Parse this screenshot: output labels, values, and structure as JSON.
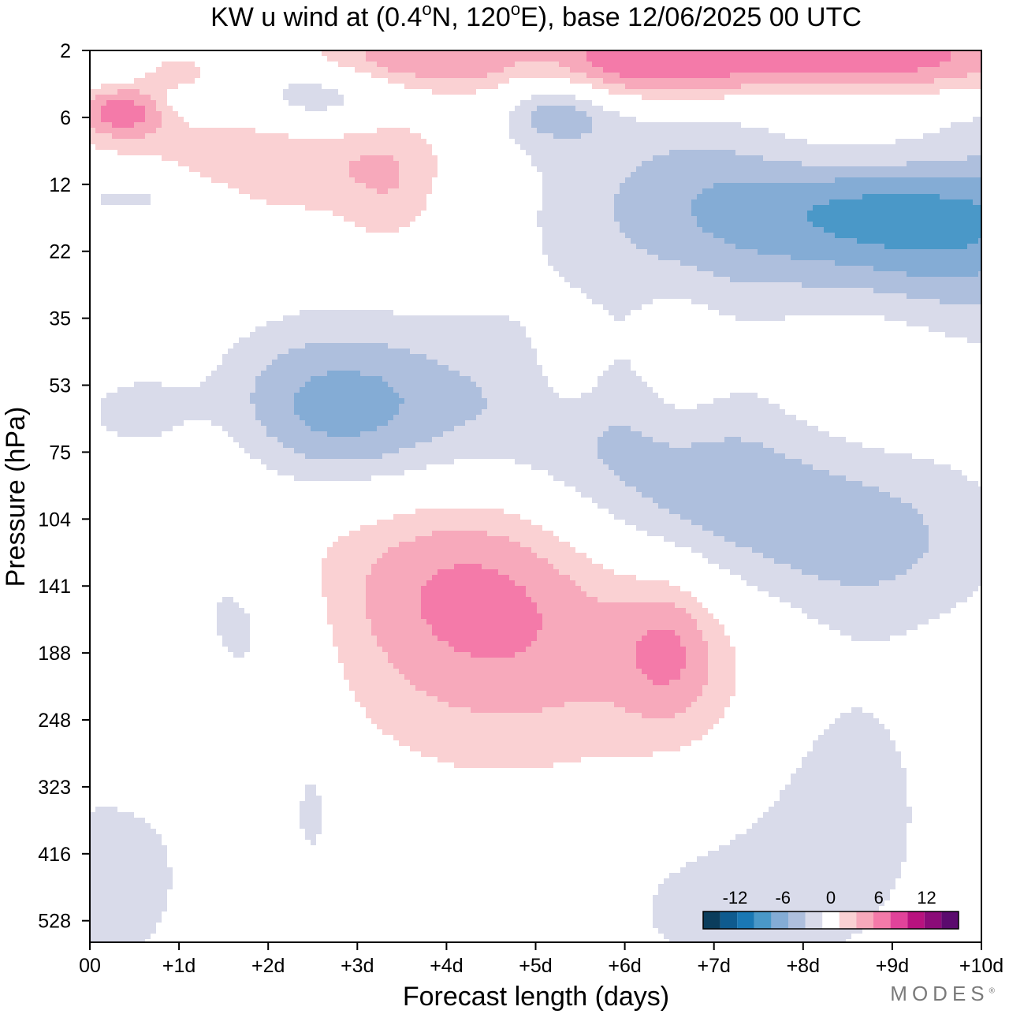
{
  "chart_data": {
    "type": "contour",
    "title": {
      "pre": "KW u wind at (0.4",
      "lat_unit": "N, 120",
      "lon_unit": "E),  base 12/06/2025  00 UTC",
      "degree": "o"
    },
    "xlabel": "Forecast length (days)",
    "ylabel": "Pressure (hPa)",
    "x_ticks": [
      {
        "value": 0,
        "label": "00"
      },
      {
        "value": 1,
        "label": "+1d"
      },
      {
        "value": 2,
        "label": "+2d"
      },
      {
        "value": 3,
        "label": "+3d"
      },
      {
        "value": 4,
        "label": "+4d"
      },
      {
        "value": 5,
        "label": "+5d"
      },
      {
        "value": 6,
        "label": "+6d"
      },
      {
        "value": 7,
        "label": "+7d"
      },
      {
        "value": 8,
        "label": "+8d"
      },
      {
        "value": 9,
        "label": "+9d"
      },
      {
        "value": 10,
        "label": "+10d"
      }
    ],
    "y_ticks": [
      2,
      6,
      12,
      22,
      35,
      53,
      75,
      104,
      141,
      188,
      248,
      323,
      416,
      528
    ],
    "xlim": [
      0,
      10
    ],
    "ylim_levels": [
      2,
      528
    ],
    "y_scale": "pressure (top = low pressure)",
    "grid": false,
    "colorbar": {
      "placement": "bottom-right",
      "labels": [
        {
          "value": -12,
          "label": "-12"
        },
        {
          "value": -6,
          "label": "-6"
        },
        {
          "value": 0,
          "label": "0"
        },
        {
          "value": 6,
          "label": "6"
        },
        {
          "value": 12,
          "label": "12"
        }
      ],
      "bins": [
        {
          "lo": -16,
          "hi": -14,
          "color": "#0b3d5c"
        },
        {
          "lo": -14,
          "hi": -12,
          "color": "#0f5b8f"
        },
        {
          "lo": -12,
          "hi": -10,
          "color": "#1a78b4"
        },
        {
          "lo": -10,
          "hi": -8,
          "color": "#4a98c8"
        },
        {
          "lo": -8,
          "hi": -6,
          "color": "#84acd5"
        },
        {
          "lo": -6,
          "hi": -4,
          "color": "#aebfdd"
        },
        {
          "lo": -4,
          "hi": -2,
          "color": "#d9dbea"
        },
        {
          "lo": -2,
          "hi": 2,
          "color": "#ffffff"
        },
        {
          "lo": 2,
          "hi": 4,
          "color": "#fad1d3"
        },
        {
          "lo": 4,
          "hi": 6,
          "color": "#f7a9bb"
        },
        {
          "lo": 6,
          "hi": 8,
          "color": "#f47aa9"
        },
        {
          "lo": 8,
          "hi": 10,
          "color": "#e1439a"
        },
        {
          "lo": 10,
          "hi": 12,
          "color": "#b8127f"
        },
        {
          "lo": 12,
          "hi": 14,
          "color": "#8b0b78"
        },
        {
          "lo": 14,
          "hi": 16,
          "color": "#5b0a6e"
        }
      ]
    },
    "fields": [
      {
        "value": -3,
        "day": 0.2,
        "level": 2.6,
        "sd": 0.3,
        "sl": 0.3
      },
      {
        "value": -3,
        "day": 1.0,
        "level": 4.4,
        "sd": 0.3,
        "sl": 0.3
      },
      {
        "value": -4,
        "day": 2.8,
        "level": 3.9,
        "sd": 0.8,
        "sl": 0.5
      },
      {
        "value": -3,
        "day": 2.4,
        "level": 4.6,
        "sd": 0.6,
        "sl": 0.4
      },
      {
        "value": -4,
        "day": 5.1,
        "level": 4.4,
        "sd": 0.4,
        "sl": 0.5
      },
      {
        "value": -3,
        "day": 5.5,
        "level": 5.4,
        "sd": 0.5,
        "sl": 0.3
      },
      {
        "value": -5,
        "day": 8.5,
        "level": 4.2,
        "sd": 1.3,
        "sl": 0.6
      },
      {
        "value": -3,
        "day": 0.5,
        "level": 13.7,
        "sd": 0.6,
        "sl": 0.2
      },
      {
        "value": 2.5,
        "day": 0.3,
        "level": 5.1,
        "sd": 0.5,
        "sl": 0.4
      },
      {
        "value": 4.5,
        "day": 0.4,
        "level": 5.4,
        "sd": 0.4,
        "sl": 0.3
      },
      {
        "value": 4.5,
        "day": 2.3,
        "level": 7.6,
        "sd": 1.1,
        "sl": 0.8
      },
      {
        "value": 2.5,
        "day": 3.4,
        "level": 12.5,
        "sd": 0.4,
        "sl": 0.8
      },
      {
        "value": 3,
        "day": 1.0,
        "level": 3.0,
        "sd": 0.3,
        "sl": 0.2
      },
      {
        "value": 5,
        "day": 3.4,
        "level": 2.3,
        "sd": 0.8,
        "sl": 0.3
      },
      {
        "value": 9,
        "day": 6.5,
        "level": 2.5,
        "sd": 1.6,
        "sl": 0.5
      },
      {
        "value": 9,
        "day": 9.2,
        "level": 2.5,
        "sd": 1.2,
        "sl": 0.5
      },
      {
        "value": 6,
        "day": 8.4,
        "level": 7.6,
        "sd": 0.9,
        "sl": 0.5
      },
      {
        "value": 3,
        "day": 9.6,
        "level": 8.8,
        "sd": 0.6,
        "sl": 0.5
      },
      {
        "value": -4,
        "day": 7.3,
        "level": 13.9,
        "sd": 1.5,
        "sl": 1.0
      },
      {
        "value": -6,
        "day": 9.4,
        "level": 14.5,
        "sd": 1.2,
        "sl": 1.0
      },
      {
        "value": -3,
        "day": 8.0,
        "level": 19.0,
        "sd": 1.8,
        "sl": 1.5
      },
      {
        "value": -3,
        "day": 10.0,
        "level": 30.0,
        "sd": 0.9,
        "sl": 2.0
      },
      {
        "value": 3.5,
        "day": 9.0,
        "level": 45.0,
        "sd": 1.3,
        "sl": 1.8
      },
      {
        "value": 2.5,
        "day": 6.6,
        "level": 49.0,
        "sd": 0.4,
        "sl": 0.9
      },
      {
        "value": 2.5,
        "day": 5.4,
        "level": 48.0,
        "sd": 0.3,
        "sl": 0.6
      },
      {
        "value": -6,
        "day": 4.2,
        "level": 68.0,
        "sd": 1.6,
        "sl": 1.2
      },
      {
        "value": -6,
        "day": 2.5,
        "level": 61.0,
        "sd": 1.0,
        "sl": 0.9
      },
      {
        "value": -6,
        "day": 6.8,
        "level": 92.0,
        "sd": 1.4,
        "sl": 1.2
      },
      {
        "value": -5,
        "day": 8.8,
        "level": 115.0,
        "sd": 1.1,
        "sl": 1.1
      },
      {
        "value": -4,
        "day": 0.5,
        "level": 62.0,
        "sd": 0.5,
        "sl": 0.5
      },
      {
        "value": -5,
        "day": 0.6,
        "level": 120.0,
        "sd": 0.8,
        "sl": 1.2
      },
      {
        "value": -3,
        "day": 1.8,
        "level": 150.0,
        "sd": 0.6,
        "sl": 1.5
      },
      {
        "value": 6,
        "day": 1.2,
        "level": 88.0,
        "sd": 1.1,
        "sl": 1.2
      },
      {
        "value": 7,
        "day": 4.3,
        "level": 122.0,
        "sd": 1.2,
        "sl": 1.7
      },
      {
        "value": 3,
        "day": 6.4,
        "level": 178.0,
        "sd": 1.9,
        "sl": 2.0
      },
      {
        "value": 4,
        "day": 6.5,
        "level": 184.0,
        "sd": 0.4,
        "sl": 0.8
      },
      {
        "value": 3,
        "day": 0.6,
        "level": 195.0,
        "sd": 0.5,
        "sl": 1.2
      },
      {
        "value": -3,
        "day": 8.5,
        "level": 280.0,
        "sd": 0.7,
        "sl": 1.2
      },
      {
        "value": -3,
        "day": 0.3,
        "level": 440.0,
        "sd": 0.7,
        "sl": 1.4
      },
      {
        "value": -3,
        "day": 7.3,
        "level": 470.0,
        "sd": 1.6,
        "sl": 1.4
      },
      {
        "value": -2.5,
        "day": 2.5,
        "level": 355.0,
        "sd": 0.2,
        "sl": 0.8
      }
    ]
  },
  "branding": {
    "name": "MODES",
    "mark": "®"
  }
}
